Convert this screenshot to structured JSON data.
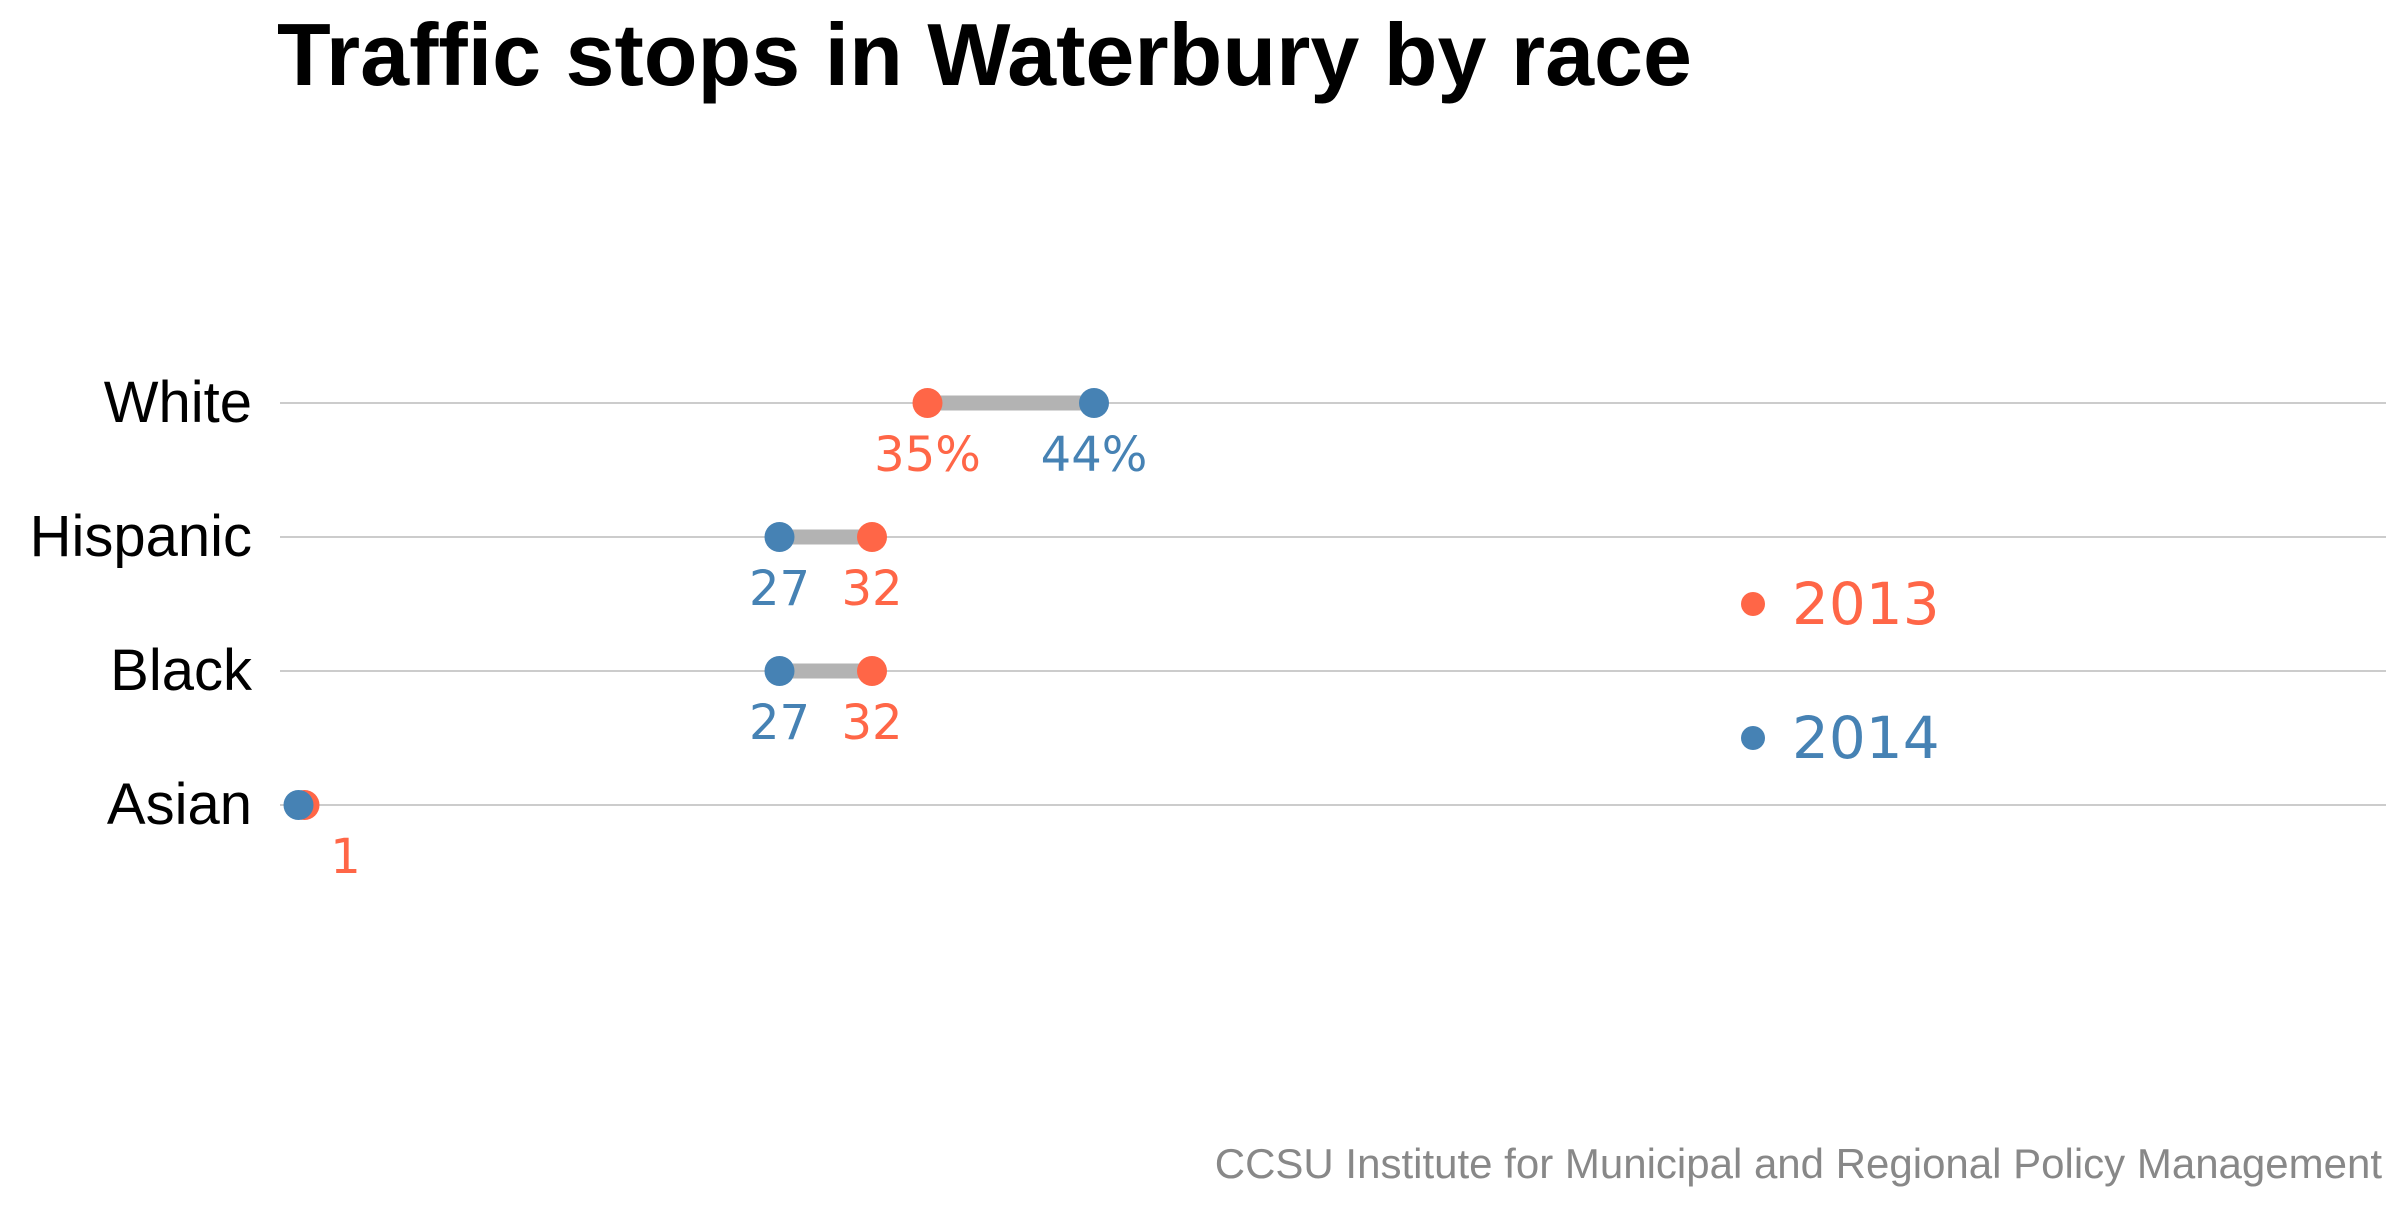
{
  "title": "Traffic stops in Waterbury by race",
  "source": "CCSU Institute for Municipal and Regional Policy Management",
  "colors": {
    "y2013": "#ff6647",
    "y2014": "#4682b4",
    "connector": "#b3b3b3",
    "gridline": "#cccccc",
    "title": "#000000",
    "category_text": "#000000",
    "source_text": "#888888"
  },
  "legend": {
    "placement": "right",
    "items": [
      {
        "label": "2013",
        "series": "2013"
      },
      {
        "label": "2014",
        "series": "2014"
      }
    ]
  },
  "chart_data": {
    "type": "dumbbell",
    "title": "Traffic stops in Waterbury by race",
    "xlabel": "",
    "ylabel": "",
    "unit": "%",
    "xlim": [
      0,
      100
    ],
    "grid": true,
    "categories": [
      "White",
      "Hispanic",
      "Black",
      "Asian"
    ],
    "series": [
      {
        "name": "2013",
        "values": [
          35,
          32,
          32,
          1
        ]
      },
      {
        "name": "2014",
        "values": [
          44,
          27,
          27,
          1
        ]
      }
    ],
    "data_labels": [
      {
        "category": "White",
        "2013": "35%",
        "2014": "44%"
      },
      {
        "category": "Hispanic",
        "2013": "32",
        "2014": "27"
      },
      {
        "category": "Black",
        "2013": "32",
        "2014": "27"
      },
      {
        "category": "Asian",
        "2013": "1",
        "2014": ""
      }
    ]
  }
}
